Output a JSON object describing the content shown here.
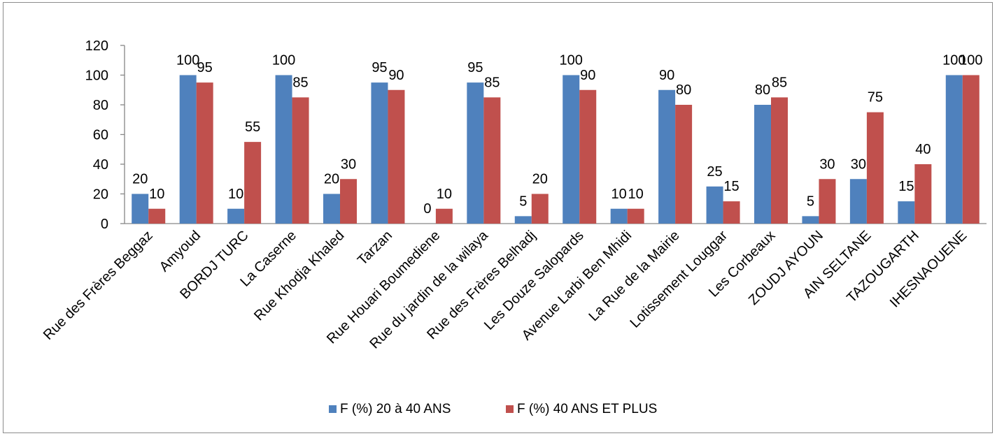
{
  "chart_data": {
    "type": "bar",
    "categories": [
      "Rue des Frères Beggaz",
      "Amyoud",
      "BORDJ TURC",
      "La Caserne",
      "Rue Khodja Khaled",
      "Tarzan",
      "Rue Houari Boumediene",
      "Rue du jardin de la wilaya",
      "Rue des Frères Belhadj",
      "Les Douze Salopards",
      "Avenue Larbi Ben Mhidi",
      "La Rue de la Mairie",
      "Lotissement Louggar",
      "Les Corbeaux",
      "ZOUDJ AYOUN",
      "AIN SELTANE",
      "TAZOUGARTH",
      "IHESNAOUENE"
    ],
    "series": [
      {
        "name": "F (%) 20 à 40 ANS",
        "color": "#4f81bd",
        "values": [
          20,
          100,
          10,
          100,
          20,
          95,
          0,
          95,
          5,
          100,
          10,
          90,
          25,
          80,
          5,
          30,
          15,
          100
        ]
      },
      {
        "name": "F (%) 40 ANS ET PLUS",
        "color": "#c0504d",
        "values": [
          10,
          95,
          55,
          85,
          30,
          90,
          10,
          85,
          20,
          90,
          10,
          80,
          15,
          85,
          30,
          75,
          40,
          100
        ]
      }
    ],
    "yticks": [
      0,
      20,
      40,
      60,
      80,
      100,
      120
    ],
    "ylim": [
      0,
      120
    ],
    "legend_position": "bottom",
    "grid": false,
    "data_labels": true
  }
}
